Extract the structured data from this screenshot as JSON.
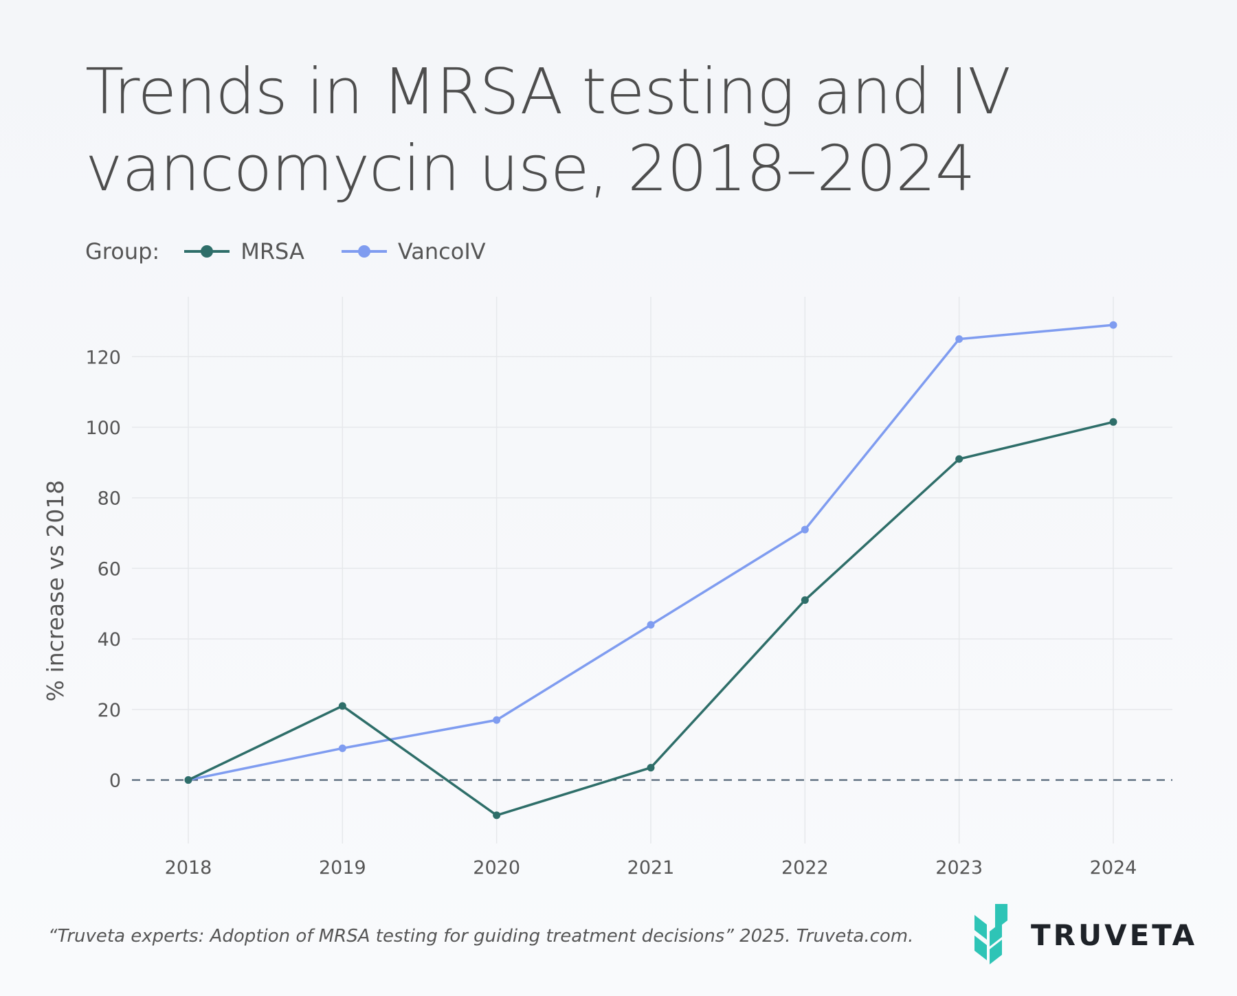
{
  "title": "Trends in MRSA testing and IV vancomycin use, 2018–2024",
  "legend": {
    "label": "Group:",
    "items": [
      {
        "name": "MRSA",
        "color": "#2e6e69"
      },
      {
        "name": "VancoIV",
        "color": "#7f9cf0"
      }
    ]
  },
  "footer": {
    "citation": "“Truveta experts: Adoption of MRSA testing for guiding treatment decisions” 2025. Truveta.com."
  },
  "brand": {
    "wordmark": "TRUVETA",
    "logo_icon": "truveta-chevron-logo",
    "logo_color": "#2ec4b6"
  },
  "chart_data": {
    "type": "line",
    "x": [
      2018,
      2019,
      2020,
      2021,
      2022,
      2023,
      2024
    ],
    "series": [
      {
        "name": "MRSA",
        "color": "#2e6e69",
        "values": [
          0,
          21,
          -10,
          3.5,
          51,
          91,
          101.5
        ]
      },
      {
        "name": "VancoIV",
        "color": "#7f9cf0",
        "values": [
          0,
          9,
          17,
          44,
          71,
          125,
          129
        ]
      }
    ],
    "ylabel": "% increase vs 2018",
    "xlabel": "",
    "yticks": [
      0,
      20,
      40,
      60,
      80,
      100,
      120
    ],
    "ylim": [
      -18,
      137
    ],
    "reference_line": {
      "y": 0,
      "style": "dashed",
      "color": "#34495e"
    },
    "grid": true,
    "legend_position": "top-left"
  }
}
